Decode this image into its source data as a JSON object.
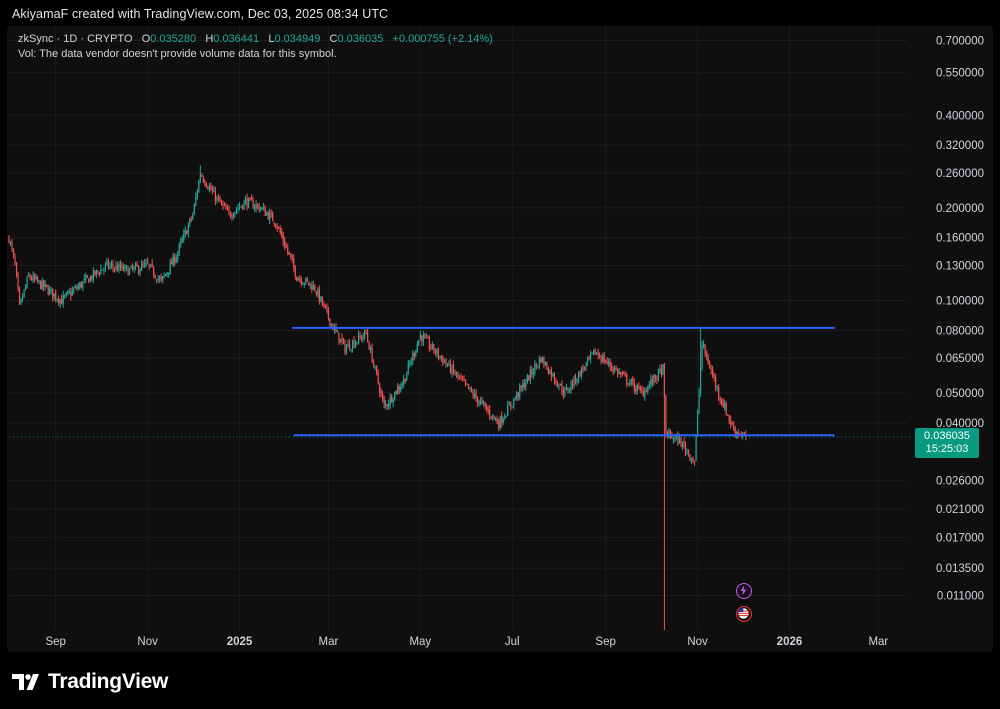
{
  "header": {
    "credit": "AkiyamaF created with TradingView.com, Dec 03, 2025 08:34 UTC"
  },
  "legend": {
    "symbol": "zkSync · 1D · CRYPTO",
    "o_label": "O",
    "o_value": "0.035280",
    "h_label": "H",
    "h_value": "0.036441",
    "l_label": "L",
    "l_value": "0.034949",
    "c_label": "C",
    "c_value": "0.036035",
    "change": "+0.000755 (+2.14%)",
    "vol_note": "Vol: The data vendor doesn't provide volume data for this symbol."
  },
  "price_tag": {
    "price": "0.036035",
    "countdown": "15:25:03"
  },
  "brand": {
    "logo_text": "TradingView"
  },
  "colors": {
    "up": "#26a69a",
    "down": "#ef5350",
    "trendline": "#2962ff",
    "price_tag": "#089981",
    "background": "#0f0f0f"
  },
  "icons": {
    "flash_badge": "lightning-icon",
    "flag_badge": "us-flag-icon"
  },
  "chart_data": {
    "type": "candlestick",
    "scale": "log",
    "ylim": [
      0.0085,
      0.78
    ],
    "y_ticks": [
      0.7,
      0.55,
      0.4,
      0.32,
      0.26,
      0.2,
      0.16,
      0.13,
      0.1,
      0.08,
      0.065,
      0.05,
      0.04,
      0.026,
      0.021,
      0.017,
      0.0135,
      0.011
    ],
    "y_tick_labels": [
      "0.700000",
      "0.550000",
      "0.400000",
      "0.320000",
      "0.260000",
      "0.200000",
      "0.160000",
      "0.130000",
      "0.100000",
      "0.080000",
      "0.065000",
      "0.050000",
      "0.040000",
      "0.026000",
      "0.021000",
      "0.017000",
      "0.013500",
      "0.011000"
    ],
    "x_range": [
      "2024-08-01",
      "2026-03-20"
    ],
    "x_ticks": [
      "2024-09-01",
      "2024-11-01",
      "2025-01-01",
      "2025-03-01",
      "2025-05-01",
      "2025-07-01",
      "2025-09-01",
      "2025-11-01",
      "2026-01-01",
      "2026-03-01"
    ],
    "x_tick_labels": [
      "Sep",
      "Nov",
      "2025",
      "Mar",
      "May",
      "Jul",
      "Sep",
      "Nov",
      "2026",
      "Mar"
    ],
    "grid": true,
    "price_anchors": [
      {
        "date": "2024-08-01",
        "price": 0.16
      },
      {
        "date": "2024-08-05",
        "price": 0.13
      },
      {
        "date": "2024-08-08",
        "price": 0.095
      },
      {
        "date": "2024-08-14",
        "price": 0.12
      },
      {
        "date": "2024-08-25",
        "price": 0.11
      },
      {
        "date": "2024-09-05",
        "price": 0.1
      },
      {
        "date": "2024-09-20",
        "price": 0.115
      },
      {
        "date": "2024-10-05",
        "price": 0.13
      },
      {
        "date": "2024-10-20",
        "price": 0.125
      },
      {
        "date": "2024-11-01",
        "price": 0.13
      },
      {
        "date": "2024-11-10",
        "price": 0.115
      },
      {
        "date": "2024-11-20",
        "price": 0.14
      },
      {
        "date": "2024-12-01",
        "price": 0.19
      },
      {
        "date": "2024-12-06",
        "price": 0.26
      },
      {
        "date": "2024-12-15",
        "price": 0.22
      },
      {
        "date": "2024-12-25",
        "price": 0.19
      },
      {
        "date": "2025-01-05",
        "price": 0.21
      },
      {
        "date": "2025-01-15",
        "price": 0.2
      },
      {
        "date": "2025-01-25",
        "price": 0.18
      },
      {
        "date": "2025-02-03",
        "price": 0.14
      },
      {
        "date": "2025-02-08",
        "price": 0.12
      },
      {
        "date": "2025-02-20",
        "price": 0.11
      },
      {
        "date": "2025-03-05",
        "price": 0.08
      },
      {
        "date": "2025-03-12",
        "price": 0.07
      },
      {
        "date": "2025-03-26",
        "price": 0.078
      },
      {
        "date": "2025-04-07",
        "price": 0.045
      },
      {
        "date": "2025-04-20",
        "price": 0.055
      },
      {
        "date": "2025-05-01",
        "price": 0.077
      },
      {
        "date": "2025-05-15",
        "price": 0.065
      },
      {
        "date": "2025-06-01",
        "price": 0.052
      },
      {
        "date": "2025-06-22",
        "price": 0.04
      },
      {
        "date": "2025-07-05",
        "price": 0.05
      },
      {
        "date": "2025-07-20",
        "price": 0.065
      },
      {
        "date": "2025-08-05",
        "price": 0.05
      },
      {
        "date": "2025-08-25",
        "price": 0.068
      },
      {
        "date": "2025-09-10",
        "price": 0.058
      },
      {
        "date": "2025-09-25",
        "price": 0.05
      },
      {
        "date": "2025-10-09",
        "price": 0.06
      },
      {
        "date": "2025-10-11",
        "price": 0.037
      },
      {
        "date": "2025-10-20",
        "price": 0.035
      },
      {
        "date": "2025-10-30",
        "price": 0.03
      },
      {
        "date": "2025-11-04",
        "price": 0.072
      },
      {
        "date": "2025-11-15",
        "price": 0.05
      },
      {
        "date": "2025-11-25",
        "price": 0.038
      },
      {
        "date": "2025-12-03",
        "price": 0.036035
      }
    ],
    "wick_extremes": [
      {
        "date": "2025-10-10",
        "low": 0.0085
      },
      {
        "date": "2025-11-03",
        "high": 0.082
      },
      {
        "date": "2024-12-06",
        "high": 0.275
      }
    ],
    "trendlines": [
      {
        "name": "resistance",
        "from": {
          "date": "2025-02-05",
          "price": 0.0815
        },
        "to": {
          "date": "2026-01-31",
          "price": 0.0815
        }
      },
      {
        "name": "support",
        "from": {
          "date": "2025-02-06",
          "price": 0.0365
        },
        "to": {
          "date": "2026-01-31",
          "price": 0.0365
        }
      }
    ],
    "last_price": 0.036035
  }
}
